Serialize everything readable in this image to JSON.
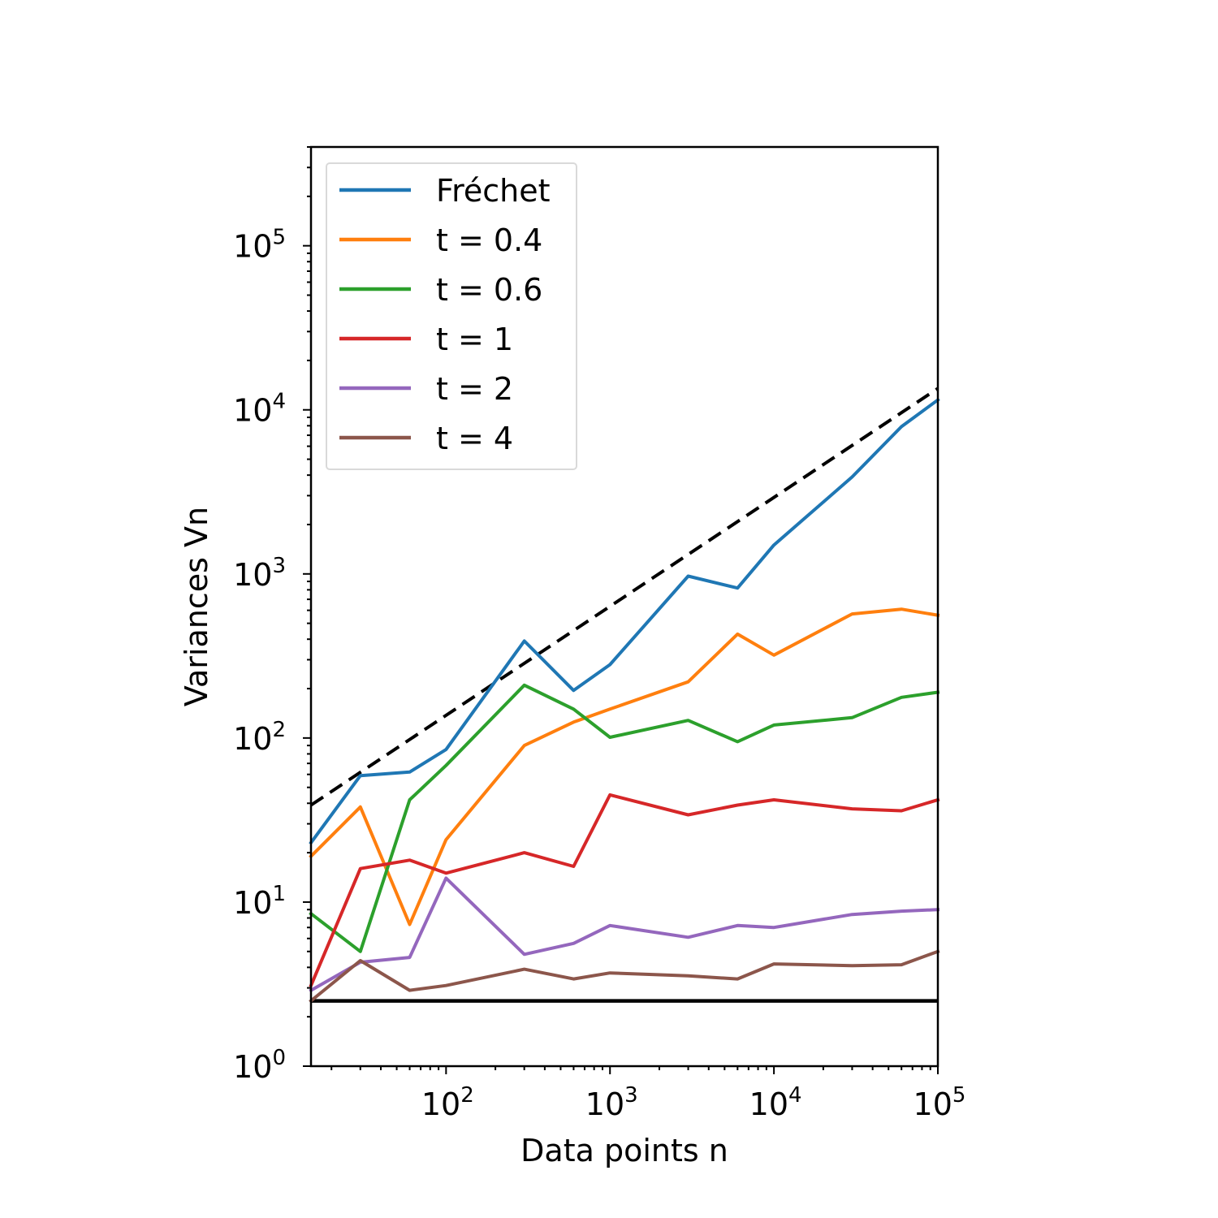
{
  "chart_data": {
    "type": "line",
    "xscale": "log",
    "yscale": "log",
    "xlim": [
      15,
      100000
    ],
    "ylim": [
      1,
      400000
    ],
    "xlabel": "Data points n",
    "ylabel": "Variances Vn",
    "x_ticks": [
      {
        "base": "10",
        "exp": "2",
        "value": 100
      },
      {
        "base": "10",
        "exp": "3",
        "value": 1000
      },
      {
        "base": "10",
        "exp": "4",
        "value": 10000
      },
      {
        "base": "10",
        "exp": "5",
        "value": 100000
      }
    ],
    "y_ticks": [
      {
        "base": "10",
        "exp": "0",
        "value": 1
      },
      {
        "base": "10",
        "exp": "1",
        "value": 10
      },
      {
        "base": "10",
        "exp": "2",
        "value": 100
      },
      {
        "base": "10",
        "exp": "3",
        "value": 1000
      },
      {
        "base": "10",
        "exp": "4",
        "value": 10000
      },
      {
        "base": "10",
        "exp": "5",
        "value": 100000
      }
    ],
    "grid": false,
    "legend_position": "upper-left",
    "x": [
      15,
      30,
      60,
      100,
      300,
      600,
      1000,
      3000,
      6000,
      10000,
      30000,
      60000,
      100000
    ],
    "series": [
      {
        "name": "Fréchet",
        "color": "#1f77b4",
        "values": [
          23,
          59,
          62,
          85,
          390,
          195,
          280,
          970,
          820,
          1500,
          3900,
          7900,
          11500
        ]
      },
      {
        "name": "t = 0.4",
        "color": "#ff7f0e",
        "values": [
          19,
          38,
          7.3,
          24,
          90,
          125,
          150,
          220,
          430,
          320,
          570,
          610,
          560
        ]
      },
      {
        "name": "t = 0.6",
        "color": "#2ca02c",
        "values": [
          8.5,
          5.0,
          42,
          68,
          210,
          150,
          101,
          128,
          95,
          120,
          133,
          177,
          190
        ]
      },
      {
        "name": "t = 1",
        "color": "#d62728",
        "values": [
          3.1,
          16,
          18,
          15,
          20,
          16.5,
          45,
          34,
          39,
          42,
          37,
          36,
          42
        ]
      },
      {
        "name": "t = 2",
        "color": "#9467bd",
        "values": [
          2.9,
          4.3,
          4.6,
          14,
          4.8,
          5.6,
          7.2,
          6.1,
          7.2,
          7.0,
          8.4,
          8.8,
          9.0
        ]
      },
      {
        "name": "t = 4",
        "color": "#8c564b",
        "values": [
          2.5,
          4.4,
          2.9,
          3.1,
          3.9,
          3.4,
          3.7,
          3.55,
          3.4,
          4.2,
          4.1,
          4.15,
          5.0
        ]
      }
    ],
    "reference_lines": [
      {
        "style": "dashed",
        "color": "#000000",
        "x": [
          15,
          100000
        ],
        "values": [
          39,
          13500
        ]
      },
      {
        "style": "solid",
        "color": "#000000",
        "x": [
          15,
          100000
        ],
        "values": [
          2.5,
          2.5
        ]
      }
    ]
  }
}
